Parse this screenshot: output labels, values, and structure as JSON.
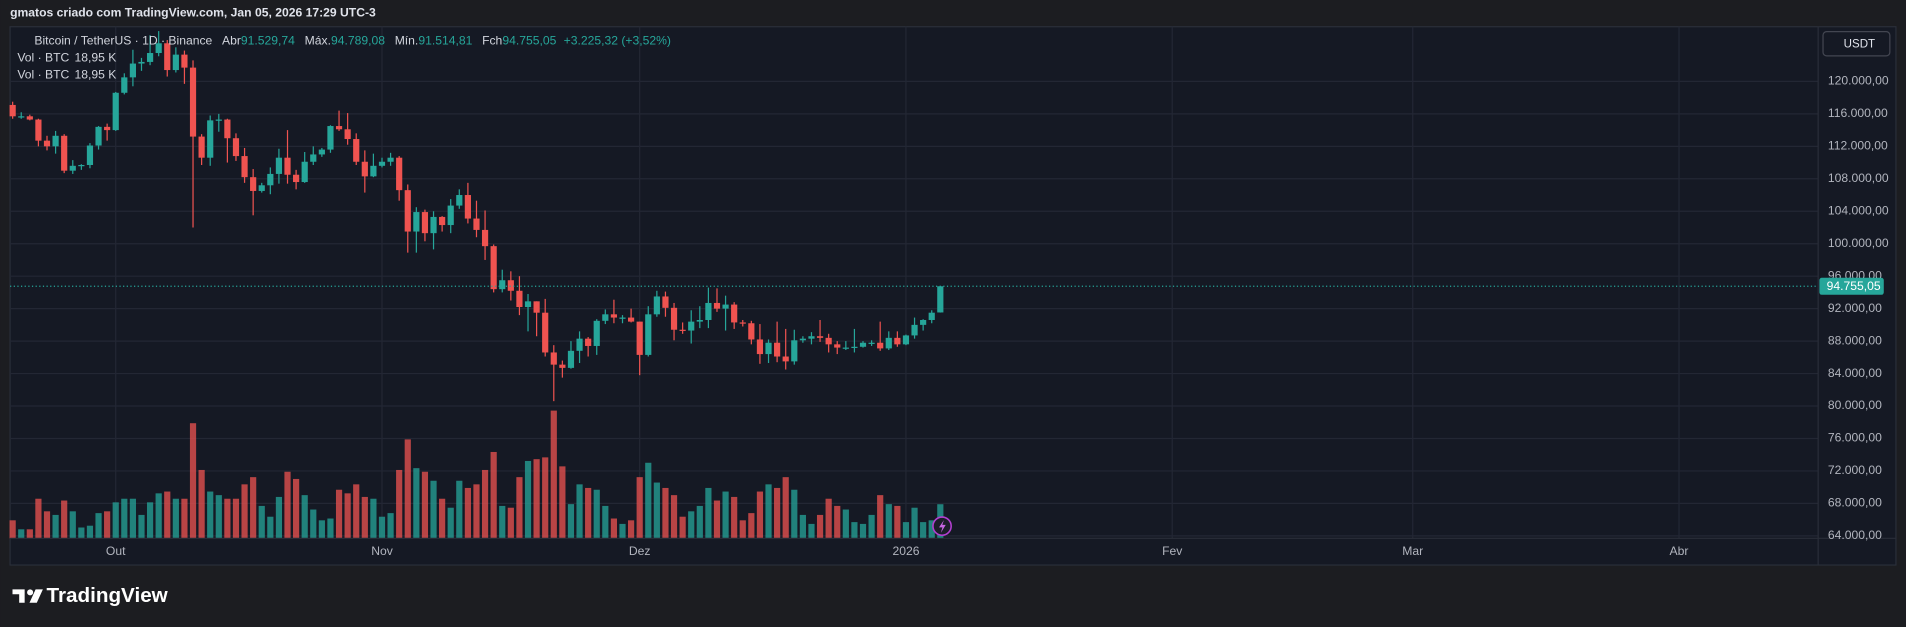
{
  "chart_data": {
    "type": "candlestick",
    "caption": "gmatos criado com TradingView.com, Jan 05, 2026 17:29 UTC-3",
    "title": "Bitcoin / TetherUS · 1D · Binance",
    "ohlc_legend": [
      {
        "label": "Abr",
        "value": "91.529,74"
      },
      {
        "label": "Máx.",
        "value": "94.789,08"
      },
      {
        "label": "Mín.",
        "value": "91.514,81"
      },
      {
        "label": "Fch",
        "value": "94.755,05"
      }
    ],
    "change": "+3.225,32 (+3,52%)",
    "volume_legend": [
      {
        "label": "Vol · BTC",
        "value": "18,95 K"
      },
      {
        "label": "Vol · BTC",
        "value": "18,95 K"
      }
    ],
    "currency": "USDT",
    "brand": "TradingView",
    "up_color": "#26a69a",
    "down_color": "#ef5350",
    "open": [
      117100,
      115700,
      115700,
      115300,
      112700,
      112000,
      113300,
      109000,
      109600,
      109700,
      112100,
      114400,
      114000,
      118600,
      120500,
      122200,
      122400,
      123500,
      124700,
      121400,
      123300,
      121700,
      113200,
      110600,
      115200,
      115300,
      113000,
      110800,
      108200,
      106500,
      107200,
      108600,
      110600,
      108500,
      107600,
      110100,
      111000,
      111600,
      114500,
      114100,
      112900,
      110100,
      108300,
      109600,
      110100,
      110600,
      106600,
      101500,
      103900,
      101300,
      103300,
      102300,
      104700,
      106000,
      103100,
      101700,
      99700,
      94400,
      95500,
      94200,
      92200,
      92900,
      91500,
      86600,
      85100,
      84700,
      86800,
      88300,
      87400,
      90500,
      91300,
      90900,
      90900,
      90400,
      86300,
      91300,
      93500,
      92100,
      89400,
      89300,
      90400,
      90600,
      92700,
      92000,
      92500,
      90300,
      90200,
      88200,
      86400,
      87800,
      86100,
      85500,
      88100,
      88300,
      88600,
      88400,
      87600,
      87200,
      87200,
      87300,
      87800,
      87800,
      87100,
      88400,
      87600,
      88700,
      90000,
      90600,
      91529.74
    ],
    "high": [
      117500,
      116200,
      115900,
      115400,
      113300,
      113900,
      113500,
      110300,
      109800,
      112400,
      114500,
      114800,
      118700,
      121000,
      123900,
      122900,
      125700,
      126200,
      125100,
      124200,
      123800,
      122600,
      113500,
      115800,
      116000,
      115400,
      113600,
      111800,
      109200,
      107500,
      109400,
      111700,
      114000,
      109100,
      111300,
      112000,
      111800,
      114600,
      116400,
      116100,
      113600,
      111500,
      111100,
      110600,
      111200,
      110800,
      107300,
      104500,
      104200,
      104000,
      103400,
      105500,
      106700,
      107500,
      105300,
      104100,
      99900,
      96800,
      96600,
      96000,
      93800,
      92900,
      93200,
      87500,
      85600,
      88000,
      89200,
      88500,
      90700,
      91900,
      93100,
      91200,
      92000,
      90400,
      92300,
      94200,
      94100,
      92700,
      90300,
      91800,
      92300,
      94600,
      94500,
      93600,
      92800,
      90600,
      90500,
      90100,
      88200,
      90400,
      89500,
      89400,
      88600,
      89100,
      90600,
      88900,
      88000,
      88000,
      89500,
      88000,
      88100,
      90400,
      89200,
      89200,
      88800,
      90900,
      90700,
      91800,
      94789.08
    ],
    "low": [
      115400,
      115400,
      115200,
      112000,
      111500,
      111100,
      108700,
      108600,
      109100,
      109300,
      111600,
      112700,
      113900,
      118400,
      119400,
      121300,
      122000,
      123100,
      120600,
      121100,
      119700,
      102000,
      109700,
      109600,
      113800,
      110000,
      110200,
      107500,
      103500,
      106300,
      106100,
      107400,
      107400,
      106700,
      107500,
      109700,
      110700,
      111200,
      113900,
      112200,
      109700,
      106300,
      108200,
      109400,
      109600,
      105300,
      98900,
      98900,
      100300,
      99300,
      101500,
      101300,
      104300,
      102500,
      100800,
      98000,
      94000,
      94000,
      93000,
      91200,
      89200,
      88600,
      86100,
      80600,
      83500,
      84600,
      85300,
      86100,
      86300,
      90100,
      90200,
      90200,
      90300,
      83800,
      86100,
      91000,
      91000,
      88100,
      88900,
      87700,
      89600,
      89600,
      91600,
      89300,
      89500,
      89800,
      87600,
      85200,
      85300,
      85400,
      84500,
      85100,
      87800,
      87600,
      87900,
      86600,
      86400,
      86900,
      86600,
      87200,
      87400,
      86800,
      86900,
      87300,
      87500,
      88300,
      89300,
      90200,
      91514.81
    ],
    "close": [
      115700,
      115700,
      115300,
      112700,
      112000,
      113300,
      109000,
      109600,
      109700,
      112100,
      114400,
      114000,
      118600,
      120500,
      122200,
      122400,
      123500,
      124700,
      121400,
      123300,
      121700,
      113200,
      110600,
      115200,
      115300,
      113000,
      110800,
      108200,
      106500,
      107200,
      108600,
      110600,
      108500,
      107600,
      110100,
      111000,
      111600,
      114500,
      114100,
      112900,
      110100,
      108300,
      109600,
      110100,
      110600,
      106600,
      101500,
      103900,
      101300,
      103300,
      102300,
      104700,
      106000,
      103100,
      101700,
      99700,
      94400,
      95500,
      94200,
      92200,
      92900,
      91500,
      86600,
      85100,
      84700,
      86800,
      88300,
      87400,
      90500,
      91300,
      90900,
      90900,
      90400,
      86300,
      91300,
      93500,
      92100,
      89400,
      89300,
      90400,
      90600,
      92700,
      92000,
      92500,
      90300,
      90200,
      88200,
      86400,
      87800,
      86100,
      85500,
      88100,
      88300,
      88600,
      88400,
      87600,
      87200,
      87200,
      87300,
      87800,
      87800,
      87100,
      88400,
      87600,
      88700,
      90000,
      90600,
      91500,
      94755.05
    ],
    "volume": [
      10,
      5,
      5,
      22,
      15,
      13,
      21,
      15,
      6,
      7,
      14,
      15,
      20,
      22,
      22,
      13,
      20,
      25,
      26,
      22,
      22,
      64,
      38,
      26,
      24,
      22,
      22,
      30,
      34,
      18,
      12,
      23,
      37,
      33,
      24,
      16,
      10,
      11,
      27,
      25,
      30,
      23,
      22,
      12,
      14,
      38,
      55,
      39,
      37,
      32,
      22,
      17,
      32,
      28,
      30,
      38,
      48,
      18,
      17,
      34,
      43,
      44,
      45,
      71,
      40,
      19,
      30,
      28,
      27,
      18,
      11,
      8,
      10,
      34,
      42,
      31,
      28,
      24,
      12,
      15,
      18,
      28,
      21,
      26,
      23,
      10,
      14,
      26,
      30,
      28,
      34,
      27,
      13,
      8,
      13,
      22,
      18,
      16,
      9,
      8,
      13,
      24,
      19,
      18,
      9,
      17,
      9,
      10,
      18.95
    ],
    "volume_ylim": [
      0,
      100
    ],
    "xlim": [
      -0.3,
      210.2
    ],
    "xticks": [
      {
        "value": 12,
        "label": "Out"
      },
      {
        "value": 43,
        "label": "Nov"
      },
      {
        "value": 73,
        "label": "Dez"
      },
      {
        "value": 104,
        "label": "2026"
      },
      {
        "value": 135,
        "label": "Fev"
      },
      {
        "value": 163,
        "label": "Mar"
      },
      {
        "value": 194,
        "label": "Abr"
      }
    ],
    "ylim": [
      63700,
      126738
    ],
    "yticks": [
      {
        "value": 64000,
        "label": "64.000,00"
      },
      {
        "value": 68000,
        "label": "68.000,00"
      },
      {
        "value": 72000,
        "label": "72.000,00"
      },
      {
        "value": 76000,
        "label": "76.000,00"
      },
      {
        "value": 80000,
        "label": "80.000,00"
      },
      {
        "value": 84000,
        "label": "84.000,00"
      },
      {
        "value": 88000,
        "label": "88.000,00"
      },
      {
        "value": 92000,
        "label": "92.000,00"
      },
      {
        "value": 96000,
        "label": "96.000,00"
      },
      {
        "value": 100000,
        "label": "100.000,00"
      },
      {
        "value": 104000,
        "label": "104.000,00"
      },
      {
        "value": 108000,
        "label": "108.000,00"
      },
      {
        "value": 112000,
        "label": "112.000,00"
      },
      {
        "value": 116000,
        "label": "116.000,00"
      },
      {
        "value": 120000,
        "label": "120.000,00"
      }
    ],
    "last_price": {
      "value": 94755.05,
      "label": "94.755,05"
    },
    "grid": true
  }
}
